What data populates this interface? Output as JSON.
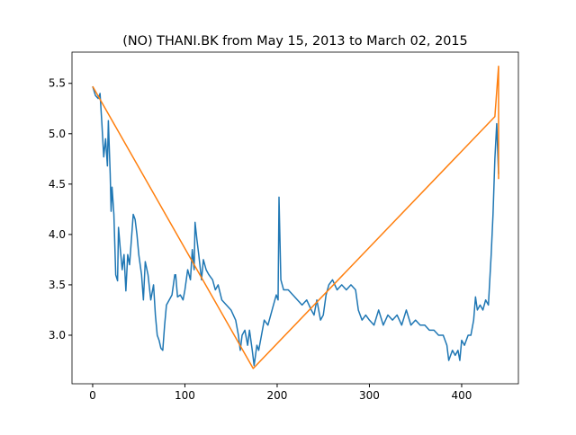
{
  "chart_data": {
    "type": "line",
    "title": "(NO) THANI.BK from May 15, 2013 to March 02, 2015",
    "xlim": [
      -22.4,
      461.5
    ],
    "ylim": [
      2.518,
      5.81
    ],
    "xticks": [
      0,
      100,
      200,
      300,
      400
    ],
    "yticks": [
      {
        "value": 3.0,
        "label": "3.0"
      },
      {
        "value": 3.5,
        "label": "3.5"
      },
      {
        "value": 4.0,
        "label": "4.0"
      },
      {
        "value": 4.5,
        "label": "4.5"
      },
      {
        "value": 5.0,
        "label": "5.0"
      },
      {
        "value": 5.5,
        "label": "5.5"
      }
    ],
    "series": [
      {
        "color": "#1f77b4",
        "x": [
          0,
          3,
          6,
          8,
          10,
          12,
          14,
          16,
          17,
          19,
          20,
          21,
          23,
          25,
          27,
          28,
          30,
          32,
          34,
          36,
          38,
          40,
          42,
          44,
          46,
          48,
          50,
          53,
          55,
          57,
          60,
          63,
          66,
          68,
          70,
          72,
          74,
          76,
          78,
          80,
          83,
          86,
          89,
          90,
          92,
          95,
          98,
          100,
          103,
          106,
          108,
          110,
          111,
          113,
          115,
          118,
          120,
          123,
          126,
          130,
          133,
          136,
          140,
          145,
          150,
          155,
          158,
          160,
          162,
          165,
          168,
          170,
          173,
          175,
          178,
          180,
          183,
          186,
          190,
          193,
          196,
          199,
          201,
          202,
          204,
          207,
          212,
          217,
          222,
          227,
          232,
          237,
          240,
          243,
          247,
          250,
          253,
          256,
          260,
          265,
          270,
          275,
          280,
          285,
          288,
          292,
          296,
          300,
          305,
          310,
          315,
          320,
          325,
          330,
          335,
          340,
          345,
          350,
          355,
          360,
          365,
          370,
          375,
          380,
          384,
          386,
          390,
          393,
          396,
          398,
          400,
          403,
          407,
          410,
          413,
          415,
          417,
          420,
          423,
          426,
          429,
          432,
          434,
          436,
          438,
          440
        ],
        "values": [
          5.47,
          5.38,
          5.35,
          5.4,
          5.1,
          4.77,
          4.95,
          4.68,
          5.13,
          4.6,
          4.23,
          4.47,
          4.2,
          3.6,
          3.54,
          4.07,
          3.85,
          3.65,
          3.8,
          3.44,
          3.8,
          3.7,
          3.95,
          4.2,
          4.15,
          4.0,
          3.8,
          3.6,
          3.35,
          3.73,
          3.6,
          3.35,
          3.5,
          3.2,
          3.0,
          2.95,
          2.87,
          2.85,
          3.1,
          3.3,
          3.35,
          3.4,
          3.6,
          3.6,
          3.38,
          3.4,
          3.35,
          3.45,
          3.65,
          3.55,
          3.85,
          3.65,
          4.12,
          3.95,
          3.8,
          3.55,
          3.75,
          3.65,
          3.6,
          3.55,
          3.45,
          3.5,
          3.35,
          3.3,
          3.25,
          3.15,
          3.0,
          2.85,
          3.0,
          3.05,
          2.9,
          3.05,
          2.85,
          2.7,
          2.9,
          2.85,
          3.0,
          3.15,
          3.1,
          3.2,
          3.3,
          3.4,
          3.35,
          4.37,
          3.55,
          3.45,
          3.45,
          3.4,
          3.35,
          3.3,
          3.35,
          3.25,
          3.2,
          3.35,
          3.15,
          3.2,
          3.4,
          3.5,
          3.55,
          3.45,
          3.5,
          3.45,
          3.5,
          3.45,
          3.25,
          3.15,
          3.2,
          3.15,
          3.1,
          3.25,
          3.1,
          3.2,
          3.15,
          3.2,
          3.1,
          3.25,
          3.1,
          3.15,
          3.1,
          3.1,
          3.05,
          3.05,
          3.0,
          3.0,
          2.9,
          2.75,
          2.85,
          2.8,
          2.85,
          2.75,
          2.95,
          2.9,
          3.0,
          3.0,
          3.15,
          3.38,
          3.25,
          3.3,
          3.25,
          3.35,
          3.3,
          3.8,
          4.2,
          4.75,
          5.1,
          4.6
        ]
      },
      {
        "color": "#ff7f0e",
        "x": [
          0,
          174,
          436,
          440,
          440
        ],
        "values": [
          5.47,
          2.67,
          5.17,
          5.67,
          4.55
        ]
      }
    ]
  }
}
